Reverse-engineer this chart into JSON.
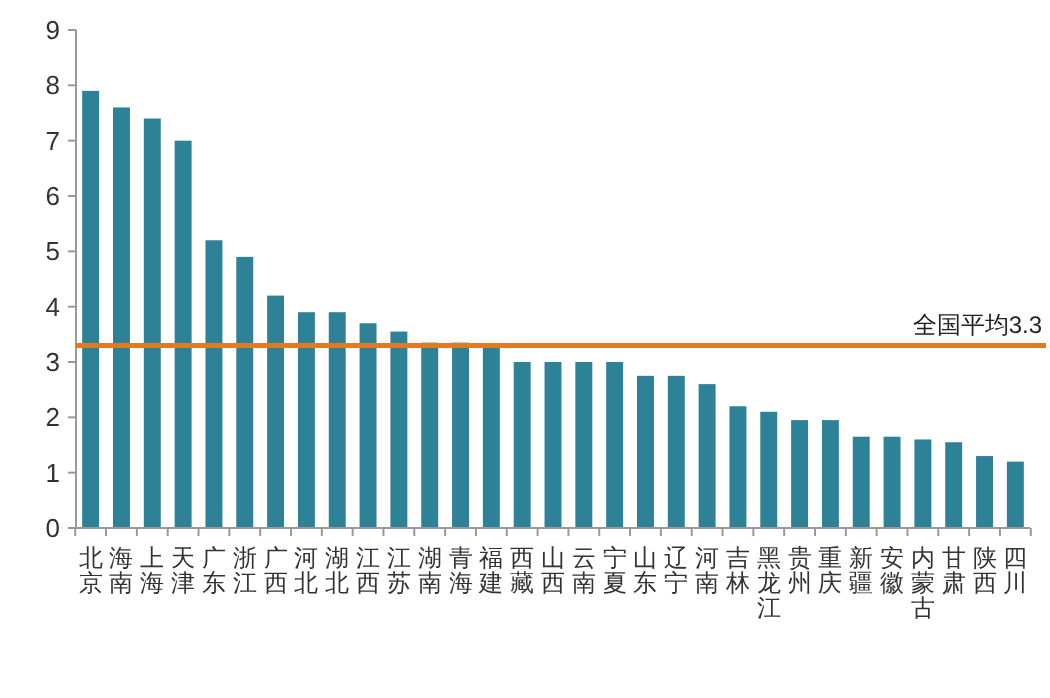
{
  "chart_data": {
    "type": "bar",
    "categories": [
      "北京",
      "海南",
      "上海",
      "天津",
      "广东",
      "浙江",
      "广西",
      "河北",
      "湖北",
      "江西",
      "江苏",
      "湖南",
      "青海",
      "福建",
      "西藏",
      "山西",
      "云南",
      "宁夏",
      "山东",
      "辽宁",
      "河南",
      "吉林",
      "黑龙江",
      "贵州",
      "重庆",
      "新疆",
      "安徽",
      "内蒙古",
      "甘肃",
      "陕西",
      "四川"
    ],
    "values": [
      7.9,
      7.6,
      7.4,
      7.0,
      5.2,
      4.9,
      4.2,
      3.9,
      3.9,
      3.7,
      3.55,
      3.35,
      3.35,
      3.3,
      3.0,
      3.0,
      3.0,
      3.0,
      2.75,
      2.75,
      2.6,
      2.2,
      2.1,
      1.95,
      1.95,
      1.65,
      1.65,
      1.6,
      1.55,
      1.3,
      1.2
    ],
    "color": "#2e8297",
    "ylim": [
      0,
      9
    ],
    "yticks": [
      0,
      1,
      2,
      3,
      4,
      5,
      6,
      7,
      8,
      9
    ],
    "grid": false,
    "ref_lines": [
      {
        "axis": "y",
        "value": 3.3,
        "label": "全国平均3.3",
        "color": "#e07b22"
      }
    ]
  }
}
